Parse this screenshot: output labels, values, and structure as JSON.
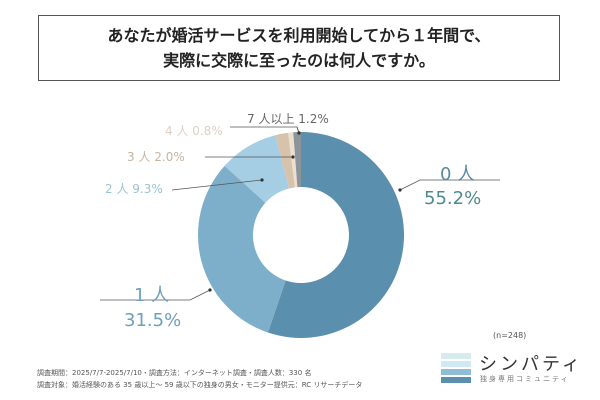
{
  "title": [
    "あなたが婚活サービスを利用開始してから１年間で、",
    "実際に交際に至ったのは何人ですか。"
  ],
  "chart_data": {
    "type": "pie",
    "variant": "donut",
    "title": "あなたが婚活サービスを利用開始してから１年間で、実際に交際に至ったのは何人ですか。",
    "slices": [
      {
        "label": "0 人",
        "value": 55.2,
        "pct": "55.2%",
        "color": "#5b8fae"
      },
      {
        "label": "1 人",
        "value": 31.5,
        "pct": "31.5%",
        "color": "#7eafca"
      },
      {
        "label": "2 人",
        "value": 9.3,
        "pct": "9.3%",
        "color": "#a5cde3"
      },
      {
        "label": "3 人",
        "value": 2.0,
        "pct": "2.0%",
        "color": "#d7c2ab"
      },
      {
        "label": "4 人",
        "value": 0.8,
        "pct": "0.8%",
        "color": "#ebdfd0"
      },
      {
        "label": "7 人以上",
        "value": 1.2,
        "pct": "1.2%",
        "color": "#8d9499"
      }
    ],
    "sample": "(n=248)"
  },
  "footer": [
    "調査期間：2025/7/7-2025/7/10・調査方法：インターネット調査・調査人数：330 名",
    "調査対象：婚活経験のある 35 歳以上～ 59 歳以下の独身の男女・モニター提供元：RC リサーチデータ"
  ],
  "logo": {
    "name": "シンパティ",
    "tagline": "独身専用コミュニティ",
    "colors": [
      "#d6ebee",
      "#cfe9f5",
      "#8fbdd3",
      "#5b8fae"
    ]
  }
}
